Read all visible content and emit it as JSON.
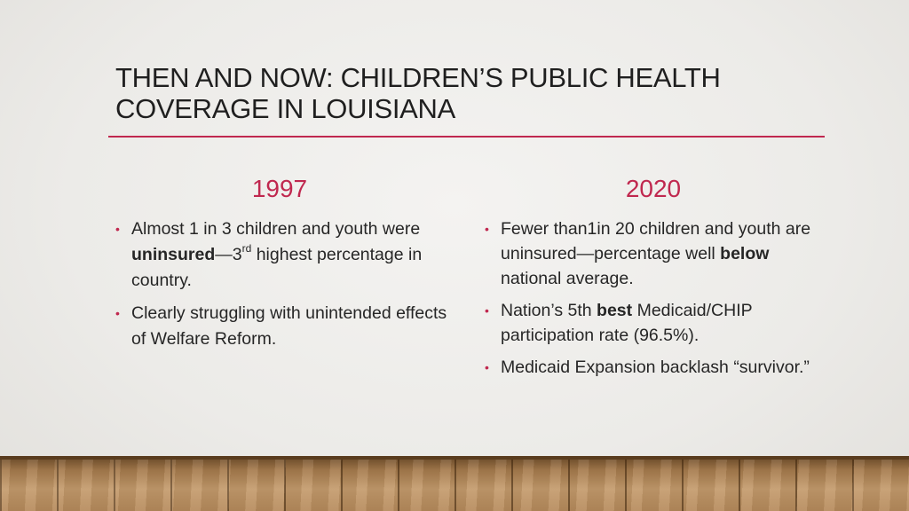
{
  "slide": {
    "title_line1": "Then and Now: Children’s Public Health",
    "title_line2": "Coverage in Louisiana",
    "colors": {
      "accent": "#c0284f",
      "text": "#262626"
    }
  },
  "left": {
    "heading": "1997",
    "items": [
      {
        "part1": "Almost 1 in 3 children and youth were ",
        "bold": "uninsured",
        "part2": "—3",
        "sup": "rd",
        "part3": " highest percentage in country."
      },
      {
        "text": " Clearly struggling with unintended effects of Welfare Reform."
      }
    ]
  },
  "right": {
    "heading": "2020",
    "items": [
      {
        "part1": "Fewer than1in 20 children and youth are uninsured—percentage well ",
        "bold": "below",
        "part2": " national average."
      },
      {
        "part1": "Nation’s 5th ",
        "bold": "best",
        "part2": " Medicaid/CHIP participation rate (96.5%)."
      },
      {
        "text": "Medicaid Expansion backlash “survivor.”"
      }
    ]
  },
  "bullet_glyph": "•"
}
